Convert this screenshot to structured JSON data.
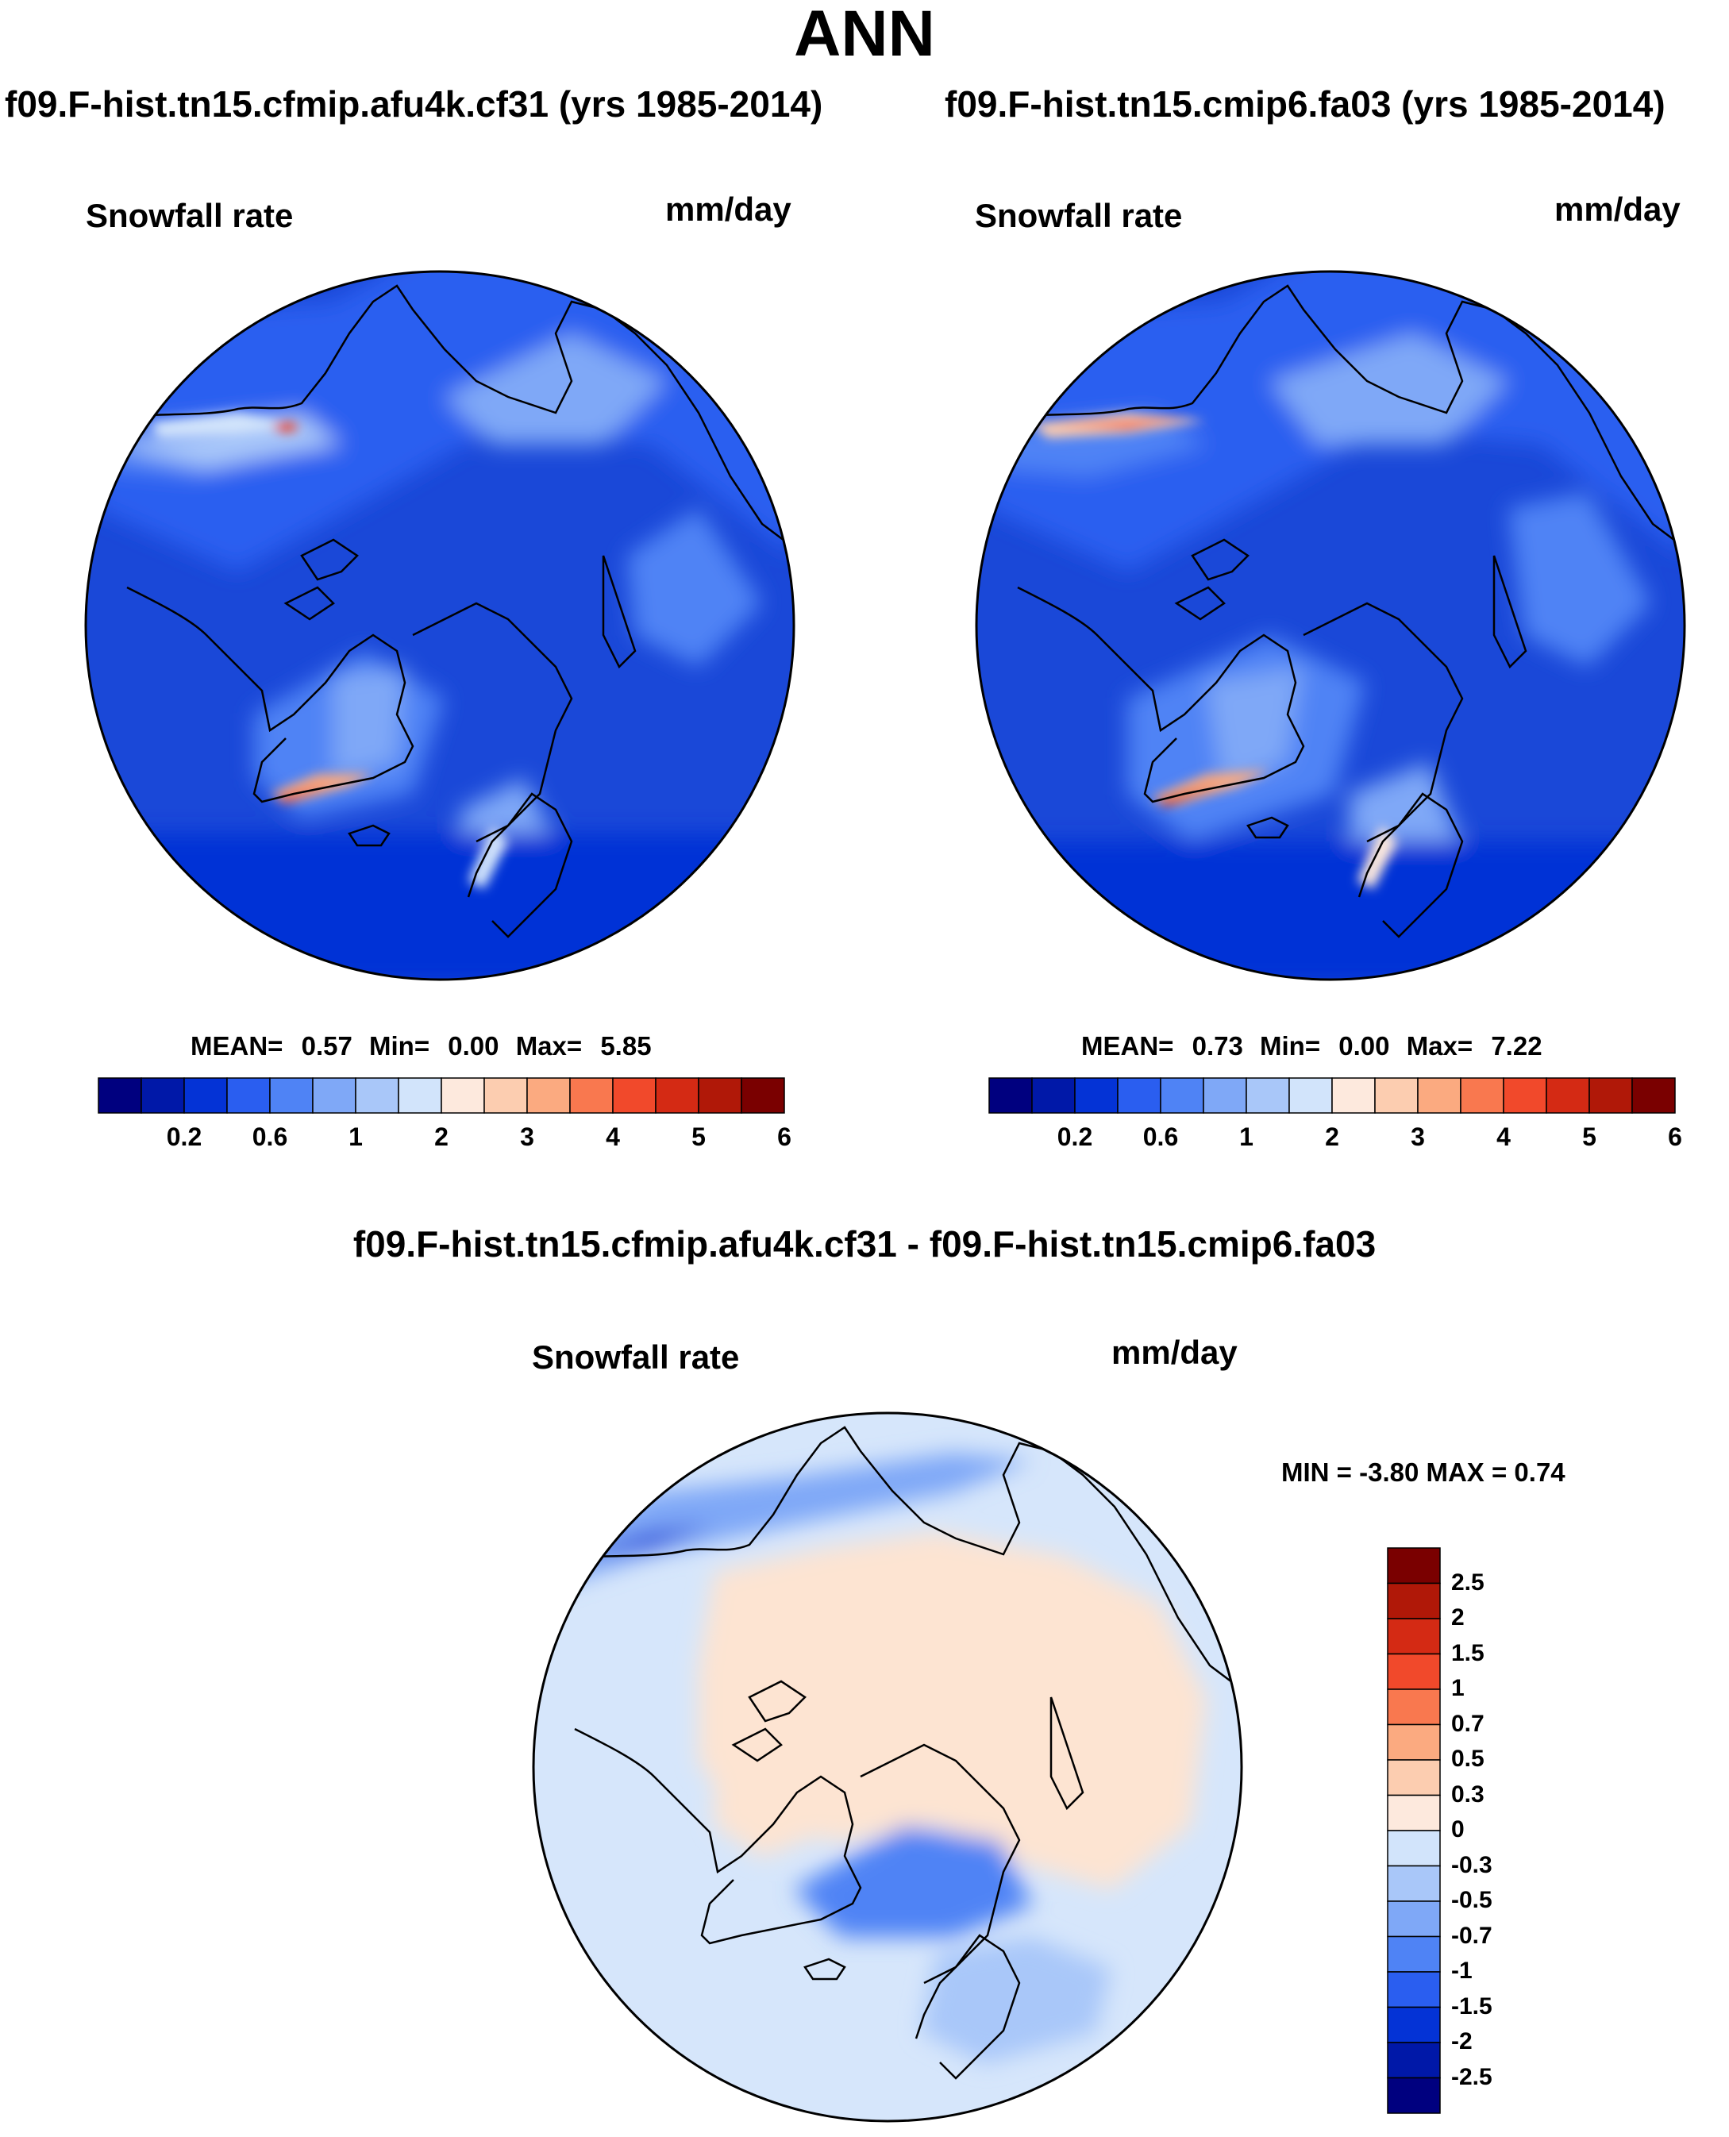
{
  "page_title": "ANN",
  "panels": [
    {
      "case_title": "f09.F-hist.tn15.cfmip.afu4k.cf31 (yrs 1985-2014)",
      "variable": "Snowfall rate",
      "units": "mm/day",
      "stats": {
        "mean_label": "MEAN=",
        "mean": "0.57",
        "min_label": "Min=",
        "min": "0.00",
        "max_label": "Max=",
        "max": "5.85"
      }
    },
    {
      "case_title": "f09.F-hist.tn15.cmip6.fa03 (yrs 1985-2014)",
      "variable": "Snowfall rate",
      "units": "mm/day",
      "stats": {
        "mean_label": "MEAN=",
        "mean": "0.73",
        "min_label": "Min=",
        "min": "0.00",
        "max_label": "Max=",
        "max": "7.22"
      }
    }
  ],
  "diff_panel": {
    "title": "f09.F-hist.tn15.cfmip.afu4k.cf31 - f09.F-hist.tn15.cmip6.fa03",
    "variable": "Snowfall rate",
    "units": "mm/day",
    "minmax_text": "MIN = -3.80 MAX = 0.74"
  },
  "colors": {
    "abs_colorbar": [
      "#00007f",
      "#0018a8",
      "#0433d6",
      "#2a5ef0",
      "#4f83f5",
      "#7fa8f7",
      "#a9c7f9",
      "#d2e4fb",
      "#fde9dd",
      "#fccdb0",
      "#fbaa80",
      "#f9784f",
      "#f1492b",
      "#d42a14",
      "#b01808",
      "#7a0000"
    ],
    "diff_colorbar": [
      "#00007f",
      "#0018a8",
      "#0433d6",
      "#2a5ef0",
      "#4f83f5",
      "#7fa8f7",
      "#a9c7f9",
      "#d2e4fb",
      "#fde9dd",
      "#fccdb0",
      "#fbaa80",
      "#f9784f",
      "#f1492b",
      "#d42a14",
      "#b01808",
      "#7a0000"
    ],
    "ocean_base": "#1a48d8",
    "diff_base": "#d6e6fb",
    "diff_positive": "#fde4d2"
  },
  "chart_data": [
    {
      "type": "heatmap",
      "projection": "north polar stereographic",
      "title": "f09.F-hist.tn15.cfmip.afu4k.cf31 (yrs 1985-2014)",
      "variable": "Snowfall rate",
      "units": "mm/day",
      "mean": 0.57,
      "min": 0.0,
      "max": 5.85,
      "colorbar_levels": [
        0.1,
        0.2,
        0.4,
        0.6,
        0.8,
        1,
        1.5,
        2,
        2.5,
        3,
        3.5,
        4,
        4.5,
        5,
        5.5,
        6
      ],
      "colorbar_tick_labels": [
        "0.2",
        "0.6",
        "1",
        "2",
        "3",
        "4",
        "5",
        "6"
      ]
    },
    {
      "type": "heatmap",
      "projection": "north polar stereographic",
      "title": "f09.F-hist.tn15.cmip6.fa03 (yrs 1985-2014)",
      "variable": "Snowfall rate",
      "units": "mm/day",
      "mean": 0.73,
      "min": 0.0,
      "max": 7.22,
      "colorbar_levels": [
        0.1,
        0.2,
        0.4,
        0.6,
        0.8,
        1,
        1.5,
        2,
        2.5,
        3,
        3.5,
        4,
        4.5,
        5,
        5.5,
        6
      ],
      "colorbar_tick_labels": [
        "0.2",
        "0.6",
        "1",
        "2",
        "3",
        "4",
        "5",
        "6"
      ]
    },
    {
      "type": "heatmap",
      "projection": "north polar stereographic",
      "title": "f09.F-hist.tn15.cfmip.afu4k.cf31 - f09.F-hist.tn15.cmip6.fa03",
      "variable": "Snowfall rate",
      "units": "mm/day",
      "min": -3.8,
      "max": 0.74,
      "colorbar_levels": [
        -2.5,
        -2,
        -1.5,
        -1,
        -0.7,
        -0.5,
        -0.3,
        0,
        0.3,
        0.5,
        0.7,
        1,
        1.5,
        2,
        2.5
      ],
      "colorbar_tick_labels": [
        "2.5",
        "2",
        "1.5",
        "1",
        "0.7",
        "0.5",
        "0.3",
        "0",
        "-0.3",
        "-0.5",
        "-0.7",
        "-1",
        "-1.5",
        "-2",
        "-2.5"
      ]
    }
  ]
}
